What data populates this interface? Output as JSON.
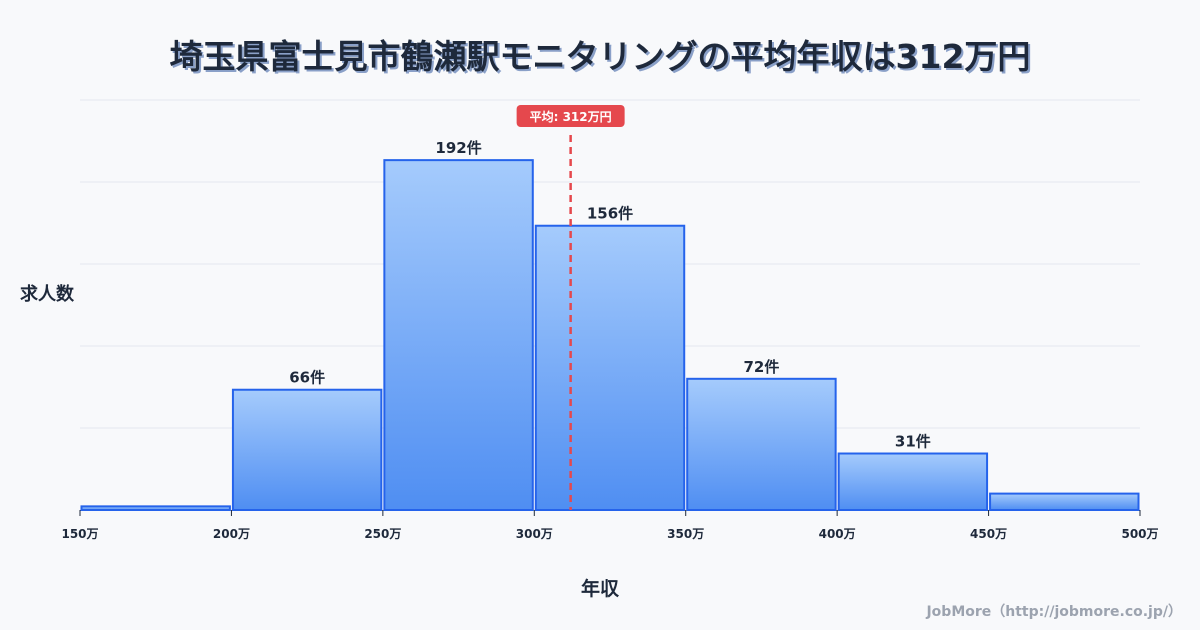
{
  "title": "埼玉県富士見市鶴瀬駅モニタリングの平均年収は312万円",
  "y_axis_label": "求人数",
  "x_axis_label": "年収",
  "footer": "JobMore（http://jobmore.co.jp/）",
  "mean_label": "平均: 312万円",
  "colors": {
    "bar_fill_top": "#a5cbfc",
    "bar_fill_bottom": "#4f8ef2",
    "bar_stroke": "#2563eb",
    "mean_line": "#e5484d",
    "grid": "#e3e7ef",
    "text": "#1e293b"
  },
  "chart_data": {
    "type": "bar",
    "title": "埼玉県富士見市鶴瀬駅モニタリングの平均年収は312万円",
    "xlabel": "年収",
    "ylabel": "求人数",
    "bins": [
      {
        "range": "150万-200万",
        "start": 150,
        "end": 200,
        "value": 2,
        "label": ""
      },
      {
        "range": "200万-250万",
        "start": 200,
        "end": 250,
        "value": 66,
        "label": "66件"
      },
      {
        "range": "250万-300万",
        "start": 250,
        "end": 300,
        "value": 192,
        "label": "192件"
      },
      {
        "range": "300万-350万",
        "start": 300,
        "end": 350,
        "value": 156,
        "label": "156件"
      },
      {
        "range": "350万-400万",
        "start": 350,
        "end": 400,
        "value": 72,
        "label": "72件"
      },
      {
        "range": "400万-450万",
        "start": 400,
        "end": 450,
        "value": 31,
        "label": "31件"
      },
      {
        "range": "450万-500万",
        "start": 450,
        "end": 500,
        "value": 9,
        "label": ""
      }
    ],
    "x_ticks": [
      "150万",
      "200万",
      "250万",
      "300万",
      "350万",
      "400万",
      "450万",
      "500万"
    ],
    "xlim": [
      150,
      500
    ],
    "ylim": [
      0,
      225
    ],
    "grid": true,
    "mean": 312,
    "mean_label": "平均: 312万円"
  }
}
